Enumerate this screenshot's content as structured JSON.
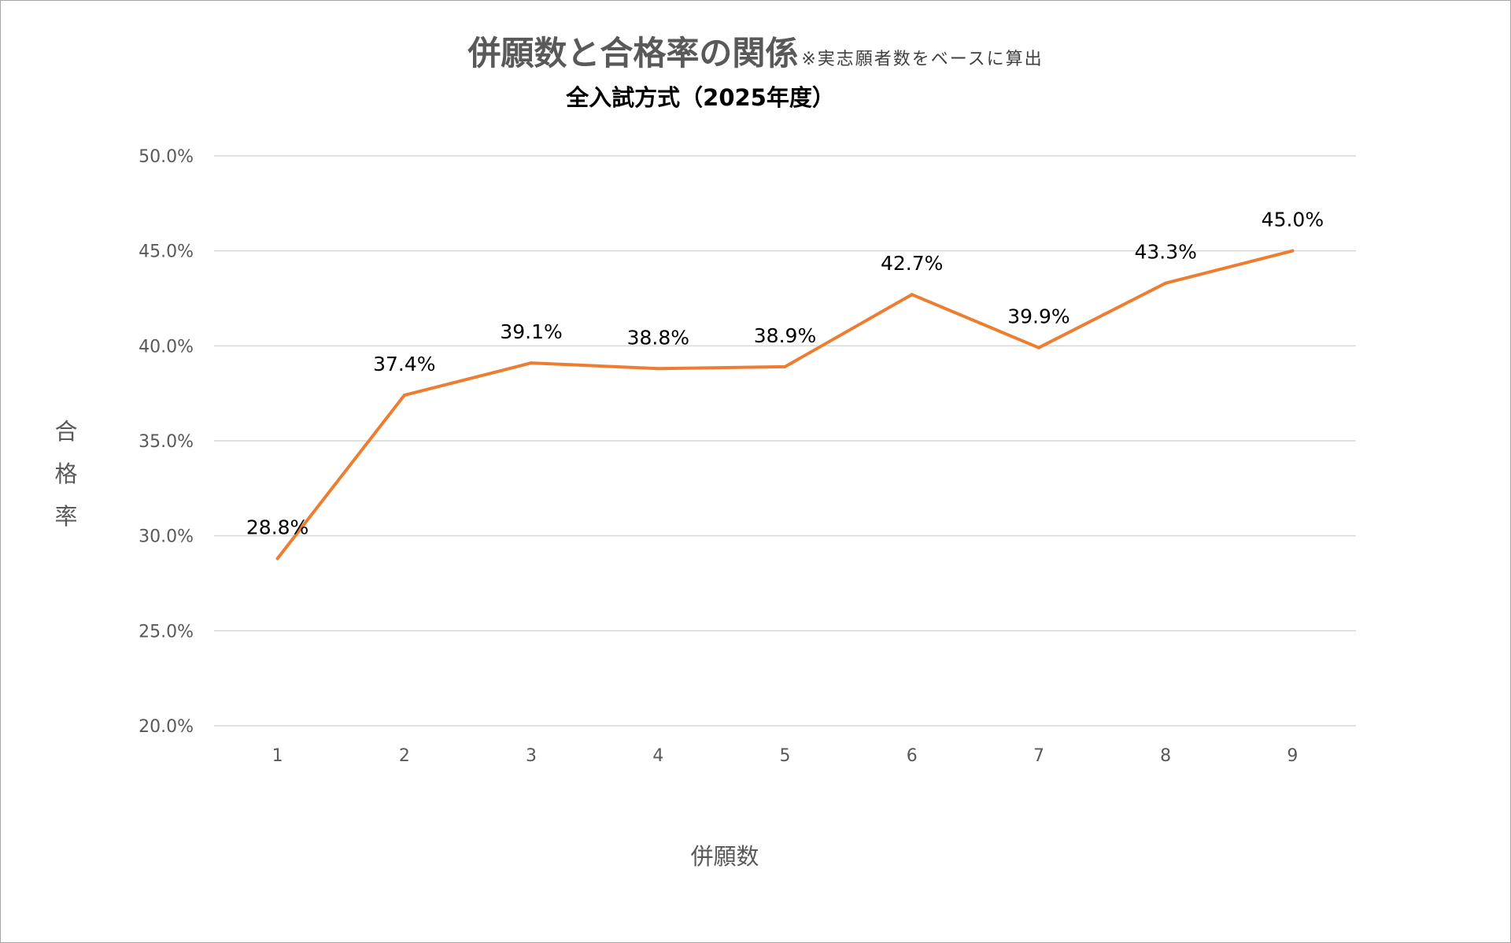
{
  "chart_data": {
    "type": "line",
    "title": "併願数と合格率の関係",
    "title_note": "※実志願者数をベースに算出",
    "subtitle": "全入試方式（2025年度）",
    "xlabel": "併願数",
    "ylabel": "合格率",
    "categories": [
      "1",
      "2",
      "3",
      "4",
      "5",
      "6",
      "7",
      "8",
      "9"
    ],
    "series": [
      {
        "values": [
          28.8,
          37.4,
          39.1,
          38.8,
          38.9,
          42.7,
          39.9,
          43.3,
          45.0
        ],
        "labels": [
          "28.8%",
          "37.4%",
          "39.1%",
          "38.8%",
          "38.9%",
          "42.7%",
          "39.9%",
          "43.3%",
          "45.0%"
        ],
        "color": "#ED7D31"
      }
    ],
    "yticks": [
      20,
      25,
      30,
      35,
      40,
      45,
      50
    ],
    "ytick_labels": [
      "20.0%",
      "25.0%",
      "30.0%",
      "35.0%",
      "40.0%",
      "45.0%",
      "50.0%"
    ],
    "ylim": [
      20,
      50
    ],
    "grid": true,
    "legend": "none",
    "colors": {
      "line": "#ED7D31",
      "grid": "#d9d9d9",
      "text": "#595959"
    }
  }
}
